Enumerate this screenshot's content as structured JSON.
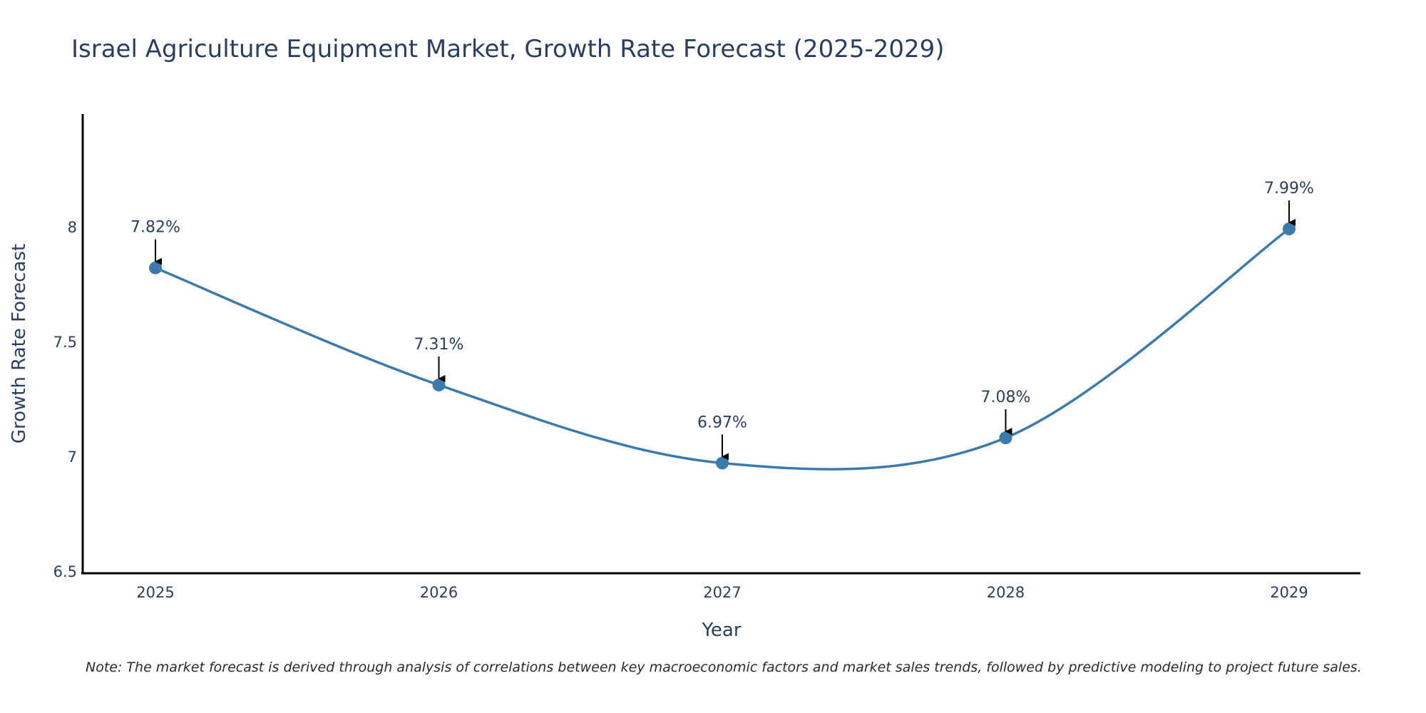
{
  "chart_data": {
    "type": "line",
    "title": "Israel Agriculture Equipment Market, Growth Rate Forecast (2025-2029)",
    "xlabel": "Year",
    "ylabel": "Growth Rate Forecast",
    "categories": [
      "2025",
      "2026",
      "2027",
      "2028",
      "2029"
    ],
    "series": [
      {
        "name": "Growth Rate Forecast",
        "values": [
          7.82,
          7.31,
          6.97,
          7.08,
          7.99
        ],
        "labels": [
          "7.82%",
          "7.31%",
          "6.97%",
          "7.08%",
          "7.99%"
        ]
      }
    ],
    "ylim": [
      6.49,
      8.49
    ],
    "yticks": [
      6.5,
      7,
      7.5,
      8
    ],
    "ytick_labels": [
      "6.5",
      "7",
      "7.5",
      "8"
    ],
    "grid": false,
    "line_shape": "spline",
    "line_color": "#3d7aac",
    "marker_color": "#3d7aac",
    "annotation_arrows": true
  },
  "note": "Note: The market forecast is derived through analysis of correlations between key macroeconomic factors and market sales trends, followed by predictive modeling to project future sales."
}
